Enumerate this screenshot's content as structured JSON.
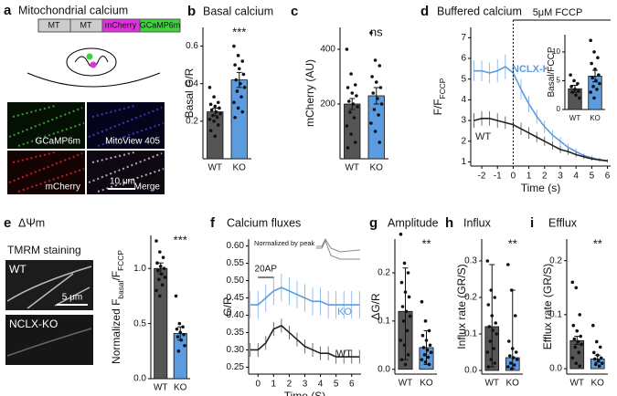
{
  "panel_a": {
    "letter": "a",
    "title": "Mitochondrial calcium",
    "construct": [
      "MT",
      "MT",
      "mCherry",
      "GCaMP6m"
    ],
    "image_labels": [
      "GCaMP6m",
      "MitoView 405",
      "mCherry",
      "Merge"
    ],
    "scale": "10 μm"
  },
  "chart_data": [
    {
      "type": "bar",
      "panel": "b",
      "title": "Basal calcium",
      "ylabel": [
        "Basal G/R"
      ],
      "categories": [
        "WT",
        "KO"
      ],
      "values": [
        0.25,
        0.42
      ],
      "whiskers": [
        [
          0.23,
          0.27
        ],
        [
          0.38,
          0.46
        ]
      ],
      "points": [
        [
          0.38,
          0.33,
          0.3,
          0.29,
          0.28,
          0.27,
          0.26,
          0.25,
          0.24,
          0.23,
          0.22,
          0.21,
          0.2,
          0.18,
          0.15,
          0.12
        ],
        [
          0.6,
          0.55,
          0.52,
          0.5,
          0.48,
          0.45,
          0.42,
          0.4,
          0.38,
          0.36,
          0.33,
          0.3,
          0.27,
          0.25,
          0.22
        ]
      ],
      "colors": [
        "#555555",
        "#5b9be0"
      ],
      "ylim": [
        0,
        0.7
      ],
      "yticks": [
        0.2,
        0.4,
        0.6
      ],
      "annotation": "***"
    },
    {
      "type": "bar",
      "panel": "c",
      "ylabel": [
        "mCherry (AU)"
      ],
      "categories": [
        "WT",
        "KO"
      ],
      "values": [
        200,
        230
      ],
      "whiskers": [
        [
          180,
          220
        ],
        [
          200,
          260
        ]
      ],
      "points": [
        [
          400,
          310,
          270,
          260,
          240,
          230,
          210,
          200,
          190,
          170,
          150,
          120,
          90,
          60,
          40
        ],
        [
          460,
          360,
          340,
          300,
          280,
          260,
          240,
          220,
          200,
          180,
          160,
          130,
          100,
          60
        ]
      ],
      "colors": [
        "#555555",
        "#5b9be0"
      ],
      "ylim": [
        0,
        480
      ],
      "yticks": [
        200,
        400
      ],
      "annotation": "ns"
    },
    {
      "type": "line",
      "panel": "d",
      "title": "Buffered calcium",
      "ylabel": [
        "F/F",
        "FCCP"
      ],
      "xlabel": "Time (s)",
      "xlim": [
        -2.7,
        6.2
      ],
      "xticks": [
        -2,
        -1,
        0,
        1,
        2,
        3,
        4,
        5,
        6
      ],
      "ylim": [
        0.8,
        7.5
      ],
      "yticks": [
        1,
        2,
        3,
        4,
        5,
        6,
        7
      ],
      "annotation": "5μM FCCP",
      "x": [
        -2.5,
        -2,
        -1.5,
        -1,
        -0.5,
        0,
        0.5,
        1,
        1.5,
        2,
        2.5,
        3,
        3.5,
        4,
        4.5,
        5,
        5.5,
        6
      ],
      "series": [
        {
          "name": "NCLX-KO",
          "color": "#5b9be0",
          "values": [
            5.4,
            5.4,
            5.3,
            5.4,
            5.6,
            5.3,
            4.5,
            3.8,
            3.2,
            2.7,
            2.3,
            2.0,
            1.7,
            1.5,
            1.3,
            1.2,
            1.1,
            1.05
          ],
          "errors": [
            0.5,
            0.5,
            0.5,
            0.55,
            0.6,
            0.6,
            0.5,
            0.4,
            0.35,
            0.3,
            0.25,
            0.2,
            0.18,
            0.15,
            0.12,
            0.1,
            0.1,
            0.08
          ]
        },
        {
          "name": "WT",
          "color": "#222222",
          "values": [
            3.0,
            3.1,
            3.1,
            3.0,
            2.9,
            2.8,
            2.6,
            2.4,
            2.2,
            2.0,
            1.8,
            1.6,
            1.5,
            1.35,
            1.25,
            1.15,
            1.1,
            1.05
          ],
          "errors": [
            0.35,
            0.35,
            0.35,
            0.35,
            0.3,
            0.3,
            0.3,
            0.28,
            0.25,
            0.22,
            0.2,
            0.18,
            0.15,
            0.12,
            0.1,
            0.08,
            0.07,
            0.06
          ]
        }
      ],
      "inset": {
        "ylabel": [
          "Basal/FCCP"
        ],
        "categories": [
          "WT",
          "KO"
        ],
        "values": [
          3.6,
          5.8
        ],
        "whiskers": [
          [
            3,
            4.2
          ],
          [
            4.8,
            6.8
          ]
        ],
        "points": [
          [
            6,
            5,
            4.5,
            4,
            3.5,
            3.2,
            3,
            2.5,
            2
          ],
          [
            12,
            10,
            9,
            8,
            7,
            6,
            5.5,
            5,
            4.5,
            4,
            3.5,
            3,
            2
          ]
        ],
        "colors": [
          "#555555",
          "#5b9be0"
        ],
        "ylim": [
          0,
          13
        ],
        "yticks": [
          0,
          5,
          10
        ]
      }
    },
    {
      "type": "bar",
      "panel": "e",
      "title": "ΔΨm",
      "subtitle": "TMRM staining",
      "image_labels": [
        "WT",
        "NCLX-KO"
      ],
      "scale": "5 μm",
      "ylabel": [
        "Normalized F",
        "basal",
        "/F",
        "FCCP"
      ],
      "categories": [
        "WT",
        "KO"
      ],
      "values": [
        1.0,
        0.41
      ],
      "whiskers": [
        [
          0.95,
          1.05
        ],
        [
          0.35,
          0.47
        ]
      ],
      "points": [
        [
          1.25,
          1.15,
          1.1,
          1.05,
          1.02,
          1.0,
          0.98,
          0.95,
          0.92,
          0.9,
          0.85,
          0.8,
          0.75
        ],
        [
          0.75,
          0.5,
          0.47,
          0.45,
          0.42,
          0.4,
          0.38,
          0.35,
          0.3,
          0.25
        ]
      ],
      "colors": [
        "#555555",
        "#5b9be0"
      ],
      "ylim": [
        0,
        1.3
      ],
      "yticks": [
        {
          "value": 0,
          "label": "0.0"
        },
        0.5,
        {
          "value": 1,
          "label": "1.0"
        }
      ],
      "annotation": "***"
    },
    {
      "type": "line",
      "panel": "f",
      "title": "Calcium fluxes",
      "ylabel": [
        "G/R"
      ],
      "xlabel": "Time (S)",
      "xlim": [
        -0.6,
        6.6
      ],
      "xticks": [
        0,
        1,
        2,
        3,
        4,
        5,
        6
      ],
      "ylim": [
        0.23,
        0.62
      ],
      "yticks": [
        0.25,
        {
          "value": 0.3,
          "label": "0.30"
        },
        0.35,
        {
          "value": 0.4,
          "label": "0.40"
        },
        0.45,
        {
          "value": 0.5,
          "label": "0.50"
        },
        0.55,
        {
          "value": 0.6,
          "label": "0.60"
        }
      ],
      "annotation": "20AP",
      "inset_label": "Normalized by peak",
      "x": [
        -0.5,
        0,
        0.5,
        1,
        1.5,
        2,
        2.5,
        3,
        3.5,
        4,
        4.5,
        5,
        5.5,
        6,
        6.5
      ],
      "series": [
        {
          "name": "KO",
          "color": "#5b9be0",
          "values": [
            0.43,
            0.43,
            0.45,
            0.47,
            0.48,
            0.47,
            0.46,
            0.45,
            0.44,
            0.44,
            0.43,
            0.43,
            0.43,
            0.43,
            0.43
          ],
          "errors": [
            0.04,
            0.04,
            0.04,
            0.04,
            0.04,
            0.04,
            0.04,
            0.04,
            0.04,
            0.04,
            0.04,
            0.04,
            0.04,
            0.04,
            0.04
          ]
        },
        {
          "name": "WT",
          "color": "#222222",
          "values": [
            0.3,
            0.3,
            0.32,
            0.36,
            0.37,
            0.35,
            0.33,
            0.31,
            0.3,
            0.29,
            0.29,
            0.28,
            0.28,
            0.28,
            0.28
          ],
          "errors": [
            0.02,
            0.02,
            0.02,
            0.02,
            0.02,
            0.02,
            0.02,
            0.02,
            0.02,
            0.02,
            0.02,
            0.02,
            0.02,
            0.02,
            0.02
          ]
        }
      ]
    },
    {
      "type": "bar",
      "panel": "g",
      "title": "Amplitude",
      "ylabel": [
        "ΔG/R"
      ],
      "categories": [
        "WT",
        "KO"
      ],
      "values": [
        0.12,
        0.045
      ],
      "whiskers": [
        [
          0.02,
          0.21
        ],
        [
          0.01,
          0.08
        ]
      ],
      "points": [
        [
          0.28,
          0.22,
          0.2,
          0.18,
          0.16,
          0.15,
          0.13,
          0.12,
          0.11,
          0.1,
          0.08,
          0.06,
          0.05,
          0.03,
          0.02,
          0.01
        ],
        [
          0.14,
          0.1,
          0.08,
          0.07,
          0.06,
          0.05,
          0.045,
          0.04,
          0.035,
          0.03,
          0.025,
          0.02,
          0.015,
          0.01
        ]
      ],
      "colors": [
        "#555555",
        "#5b9be0"
      ],
      "ylim": [
        -0.01,
        0.27
      ],
      "yticks": [
        {
          "value": 0,
          "label": "0.0"
        },
        0.1,
        0.2
      ],
      "annotation": "**"
    },
    {
      "type": "bar",
      "panel": "h",
      "title": "Influx",
      "ylabel": [
        "Influx rate (GR/S)"
      ],
      "categories": [
        "WT",
        "KO"
      ],
      "values": [
        0.12,
        0.035
      ],
      "whiskers": [
        [
          0.01,
          0.29
        ],
        [
          0.005,
          0.22
        ]
      ],
      "points": [
        [
          0.3,
          0.22,
          0.2,
          0.18,
          0.15,
          0.13,
          0.12,
          0.11,
          0.1,
          0.08,
          0.06,
          0.05,
          0.03,
          0.02,
          0.01
        ],
        [
          0.29,
          0.22,
          0.15,
          0.08,
          0.06,
          0.05,
          0.04,
          0.035,
          0.03,
          0.02,
          0.015,
          0.01,
          0.005
        ]
      ],
      "colors": [
        "#555555",
        "#5b9be0"
      ],
      "ylim": [
        -0.01,
        0.36
      ],
      "yticks": [
        {
          "value": 0,
          "label": "0.0"
        },
        0.1,
        0.2,
        0.3
      ],
      "annotation": "**"
    },
    {
      "type": "bar",
      "panel": "i",
      "title": "Efflux",
      "ylabel": [
        "Efflux rate (GR/S)"
      ],
      "categories": [
        "WT",
        "KO"
      ],
      "values": [
        0.052,
        0.018
      ],
      "whiskers": [
        [
          0.045,
          0.06
        ],
        [
          0.012,
          0.025
        ]
      ],
      "points": [
        [
          0.16,
          0.15,
          0.1,
          0.08,
          0.07,
          0.06,
          0.055,
          0.05,
          0.045,
          0.04,
          0.03,
          0.02,
          0.01,
          0.005
        ],
        [
          0.08,
          0.05,
          0.04,
          0.03,
          0.025,
          0.02,
          0.018,
          0.015,
          0.01,
          0.008,
          0.005
        ]
      ],
      "colors": [
        "#555555",
        "#5b9be0"
      ],
      "ylim": [
        -0.01,
        0.24
      ],
      "yticks": [
        {
          "value": 0,
          "label": "0.0"
        },
        0.1,
        0.2
      ],
      "annotation": "**"
    }
  ]
}
